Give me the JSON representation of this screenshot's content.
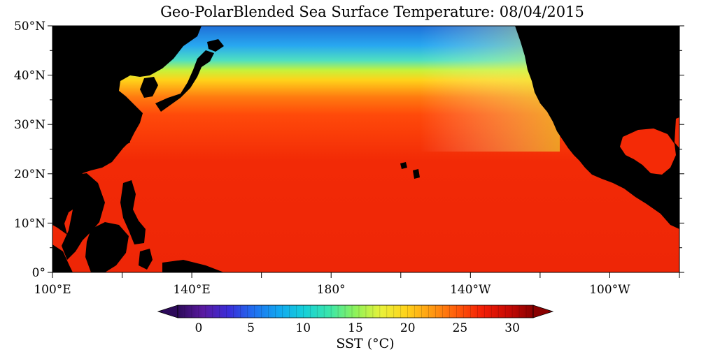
{
  "title": "Geo-PolarBlended Sea Surface Temperature: 08/04/2015",
  "lat_labels": [
    "0°",
    "10°N",
    "20°N",
    "30°N",
    "40°N",
    "50°N"
  ],
  "lon_labels": [
    "100°E",
    "140°E",
    "180°",
    "140°W",
    "100°W"
  ],
  "colorbar": {
    "ticks": [
      "0",
      "5",
      "10",
      "15",
      "20",
      "25",
      "30"
    ],
    "label": "SST (°C)",
    "min": -2,
    "max": 32,
    "stops": [
      "#2d0a5a",
      "#5a1aa0",
      "#3a2dd8",
      "#1f6ff0",
      "#12a8f0",
      "#16d0d8",
      "#3ce6a8",
      "#8ef25a",
      "#e8f23a",
      "#ffd21a",
      "#ff9a12",
      "#ff5a0a",
      "#f21e06",
      "#c80a04",
      "#8a0000"
    ]
  },
  "colors": {
    "land": "#000000",
    "background": "#ffffff"
  }
}
